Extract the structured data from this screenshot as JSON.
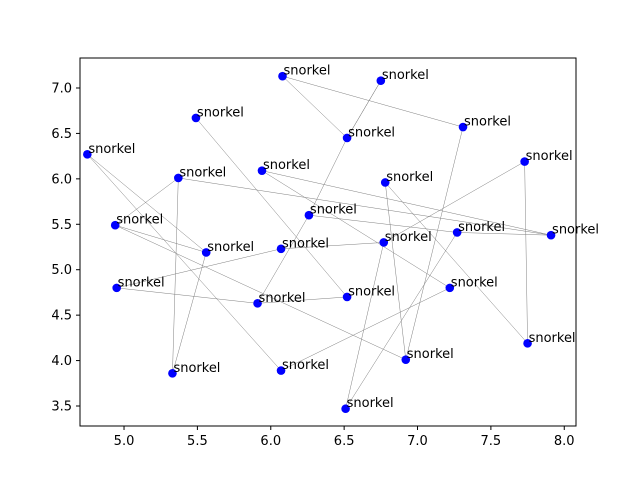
{
  "chart_data": {
    "type": "scatter",
    "title": "",
    "xlabel": "",
    "ylabel": "",
    "xlim": [
      4.7,
      8.08
    ],
    "ylim": [
      3.28,
      7.33
    ],
    "xticks": [
      "5.0",
      "5.5",
      "6.0",
      "6.5",
      "7.0",
      "7.5",
      "8.0"
    ],
    "yticks": [
      "3.5",
      "4.0",
      "4.5",
      "5.0",
      "5.5",
      "6.0",
      "6.5",
      "7.0"
    ],
    "grid": false,
    "marker_color": "#0000ff",
    "line_color": "#808080",
    "points": [
      {
        "x": 6.08,
        "y": 7.13,
        "label": "snorkel"
      },
      {
        "x": 6.75,
        "y": 7.08,
        "label": "snorkel"
      },
      {
        "x": 5.49,
        "y": 6.67,
        "label": "snorkel"
      },
      {
        "x": 7.31,
        "y": 6.57,
        "label": "snorkel"
      },
      {
        "x": 6.52,
        "y": 6.45,
        "label": "snorkel"
      },
      {
        "x": 4.75,
        "y": 6.27,
        "label": "snorkel"
      },
      {
        "x": 7.73,
        "y": 6.19,
        "label": "snorkel"
      },
      {
        "x": 5.94,
        "y": 6.09,
        "label": "snorkel"
      },
      {
        "x": 5.37,
        "y": 6.01,
        "label": "snorkel"
      },
      {
        "x": 6.78,
        "y": 5.96,
        "label": "snorkel"
      },
      {
        "x": 6.26,
        "y": 5.6,
        "label": "snorkel"
      },
      {
        "x": 4.94,
        "y": 5.49,
        "label": "snorkel"
      },
      {
        "x": 7.27,
        "y": 5.41,
        "label": "snorkel"
      },
      {
        "x": 7.91,
        "y": 5.38,
        "label": "snorkel"
      },
      {
        "x": 6.77,
        "y": 5.3,
        "label": "snorkel"
      },
      {
        "x": 6.07,
        "y": 5.23,
        "label": "snorkel"
      },
      {
        "x": 5.56,
        "y": 5.19,
        "label": "snorkel"
      },
      {
        "x": 4.95,
        "y": 4.8,
        "label": "snorkel"
      },
      {
        "x": 7.22,
        "y": 4.8,
        "label": "snorkel"
      },
      {
        "x": 6.52,
        "y": 4.7,
        "label": "snorkel"
      },
      {
        "x": 5.91,
        "y": 4.63,
        "label": "snorkel"
      },
      {
        "x": 7.75,
        "y": 4.19,
        "label": "snorkel"
      },
      {
        "x": 6.92,
        "y": 4.01,
        "label": "snorkel"
      },
      {
        "x": 6.07,
        "y": 3.89,
        "label": "snorkel"
      },
      {
        "x": 5.33,
        "y": 3.86,
        "label": "snorkel"
      },
      {
        "x": 6.51,
        "y": 3.47,
        "label": "snorkel"
      }
    ],
    "connections": [
      [
        0,
        3
      ],
      [
        0,
        4
      ],
      [
        1,
        4
      ],
      [
        4,
        10
      ],
      [
        10,
        20
      ],
      [
        20,
        17
      ],
      [
        17,
        15
      ],
      [
        15,
        14
      ],
      [
        14,
        6
      ],
      [
        6,
        21
      ],
      [
        21,
        9
      ],
      [
        9,
        22
      ],
      [
        22,
        3
      ],
      [
        2,
        19
      ],
      [
        19,
        20
      ],
      [
        11,
        8
      ],
      [
        11,
        22
      ],
      [
        8,
        24
      ],
      [
        24,
        16
      ],
      [
        16,
        11
      ],
      [
        5,
        16
      ],
      [
        5,
        23
      ],
      [
        23,
        18
      ],
      [
        18,
        7
      ],
      [
        7,
        13
      ],
      [
        13,
        8
      ],
      [
        12,
        25
      ],
      [
        25,
        14
      ],
      [
        10,
        12
      ],
      [
        12,
        13
      ],
      [
        1,
        4
      ]
    ]
  }
}
